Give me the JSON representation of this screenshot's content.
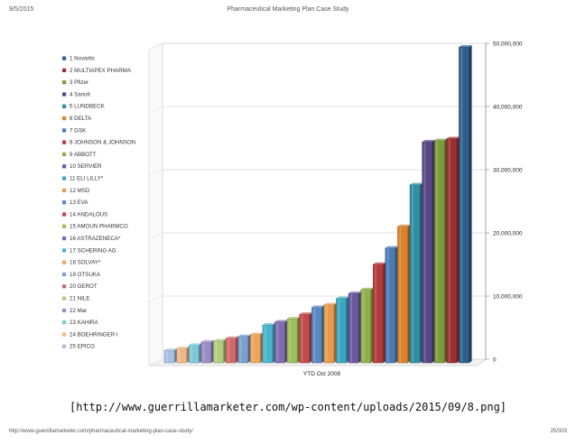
{
  "header": {
    "date": "9/5/2015",
    "title": "Pharmaceutical Marketing Plan Case Study"
  },
  "caption": "[http://www.guerrillamarketer.com/wp-content/uploads/2015/09/8.png]",
  "footer": {
    "url": "http://www.guerrillamarketer.com/pharmaceutical-marketing-plan-case-study/",
    "page": "25/303"
  },
  "chart_data": {
    "type": "bar",
    "categories": [
      "YTD Oct 2008"
    ],
    "ylim": [
      0,
      50000000
    ],
    "yticks": [
      0,
      10000000,
      20000000,
      30000000,
      40000000,
      50000000
    ],
    "ytick_labels": [
      "0",
      "10,000,000",
      "20,000,000",
      "30,000,000",
      "40,000,000",
      "50,000,000"
    ],
    "grid": true,
    "legend_position": "left",
    "series": [
      {
        "name": "1 Novartis",
        "color": "#2f5e8c",
        "values": [
          50000000
        ]
      },
      {
        "name": "2   MULTIAPEX PHARMA",
        "color": "#9b2f2f",
        "values": [
          35500000
        ]
      },
      {
        "name": "3 Pfizer",
        "color": "#7a9b3a",
        "values": [
          35200000
        ]
      },
      {
        "name": "4 Sanofi",
        "color": "#5a4585",
        "values": [
          35000000
        ]
      },
      {
        "name": "5 LUNDBECK",
        "color": "#2f8fa3",
        "values": [
          28200000
        ]
      },
      {
        "name": "6   DELTA",
        "color": "#d9822b",
        "values": [
          21600000
        ]
      },
      {
        "name": "7 GSK",
        "color": "#4a7bb5",
        "values": [
          18200000
        ]
      },
      {
        "name": "8 JOHNSON & JOHNSON",
        "color": "#b53a3a",
        "values": [
          15600000
        ]
      },
      {
        "name": "9 ABBOTT",
        "color": "#8db04a",
        "values": [
          11600000
        ]
      },
      {
        "name": "10 SERVIER",
        "color": "#6a58a0",
        "values": [
          11000000
        ]
      },
      {
        "name": "11   ELI LILLY*",
        "color": "#3aa6c0",
        "values": [
          10200000
        ]
      },
      {
        "name": "12 MSD",
        "color": "#e89a4a",
        "values": [
          9200000
        ]
      },
      {
        "name": "13 EVA",
        "color": "#5a89c4",
        "values": [
          8800000
        ]
      },
      {
        "name": "14   ANDALOUS",
        "color": "#c24a4a",
        "values": [
          7700000
        ]
      },
      {
        "name": "15 AMOUN PHARMCO",
        "color": "#9cc05a",
        "values": [
          7000000
        ]
      },
      {
        "name": "16   ASTRAZENECA*",
        "color": "#7e6bb0",
        "values": [
          6500000
        ]
      },
      {
        "name": "17   SCHERING AG",
        "color": "#48b5cc",
        "values": [
          6000000
        ]
      },
      {
        "name": "18 SOLVAY*",
        "color": "#eda55a",
        "values": [
          4500000
        ]
      },
      {
        "name": "19 OTSUKA",
        "color": "#7a9fd0",
        "values": [
          4200000
        ]
      },
      {
        "name": "20 GEROT",
        "color": "#d06a6a",
        "values": [
          3900000
        ]
      },
      {
        "name": "21 NILE",
        "color": "#b0cc80",
        "values": [
          3500000
        ]
      },
      {
        "name": "22 Mar",
        "color": "#9a8cc4",
        "values": [
          3300000
        ]
      },
      {
        "name": "23 KAHIRA",
        "color": "#7cc8d8",
        "values": [
          2800000
        ]
      },
      {
        "name": "24   BOEHRINGER I",
        "color": "#f0b888",
        "values": [
          2300000
        ]
      },
      {
        "name": "25 EPICO",
        "color": "#a8c0e0",
        "values": [
          2000000
        ]
      }
    ]
  }
}
